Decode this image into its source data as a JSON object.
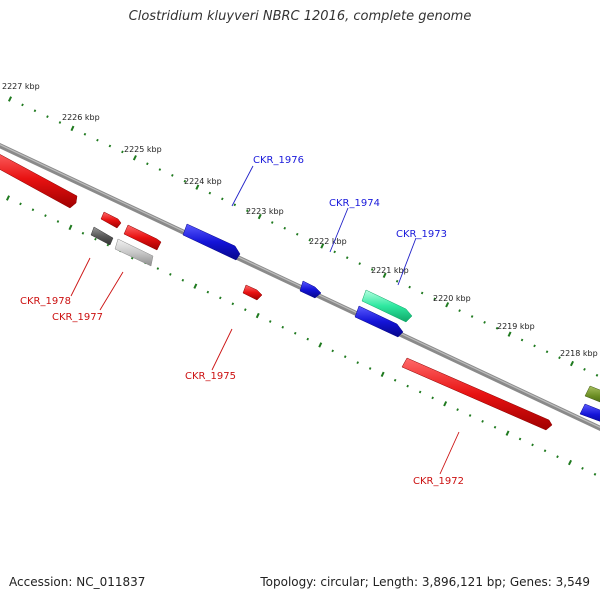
{
  "title": "Clostridium kluyveri NBRC 12016, complete genome",
  "footer": {
    "accession": "Accession: NC_011837",
    "summary": "Topology: circular; Length: 3,896,121 bp; Genes: 3,549"
  },
  "colors": {
    "forward_gene": "#1a1adb",
    "reverse_gene": "#e01010",
    "rna_gene": "#2ee8a0",
    "pseudo_dark": "#666666",
    "pseudo_light": "#c8c8c8",
    "olive_gene": "#6b8e23",
    "tick": "#1f7a1f",
    "backbone": "#8a8a8a"
  },
  "ruler": {
    "labels": [
      "2227 kbp",
      "2226 kbp",
      "2225 kbp",
      "2224 kbp",
      "2223 kbp",
      "2222 kbp",
      "2221 kbp",
      "2220 kbp",
      "2219 kbp",
      "2218 kbp"
    ]
  },
  "genes": [
    {
      "id": "CKR_1978",
      "label": "CKR_1978",
      "strand": "reverse"
    },
    {
      "id": "CKR_1977",
      "label": "CKR_1977",
      "strand": "reverse"
    },
    {
      "id": "CKR_1976",
      "label": "CKR_1976",
      "strand": "forward"
    },
    {
      "id": "CKR_1975",
      "label": "CKR_1975",
      "strand": "reverse"
    },
    {
      "id": "CKR_1974",
      "label": "CKR_1974",
      "strand": "forward"
    },
    {
      "id": "CKR_1973",
      "label": "CKR_1973",
      "strand": "forward"
    },
    {
      "id": "CKR_1972",
      "label": "CKR_1972",
      "strand": "reverse"
    }
  ]
}
